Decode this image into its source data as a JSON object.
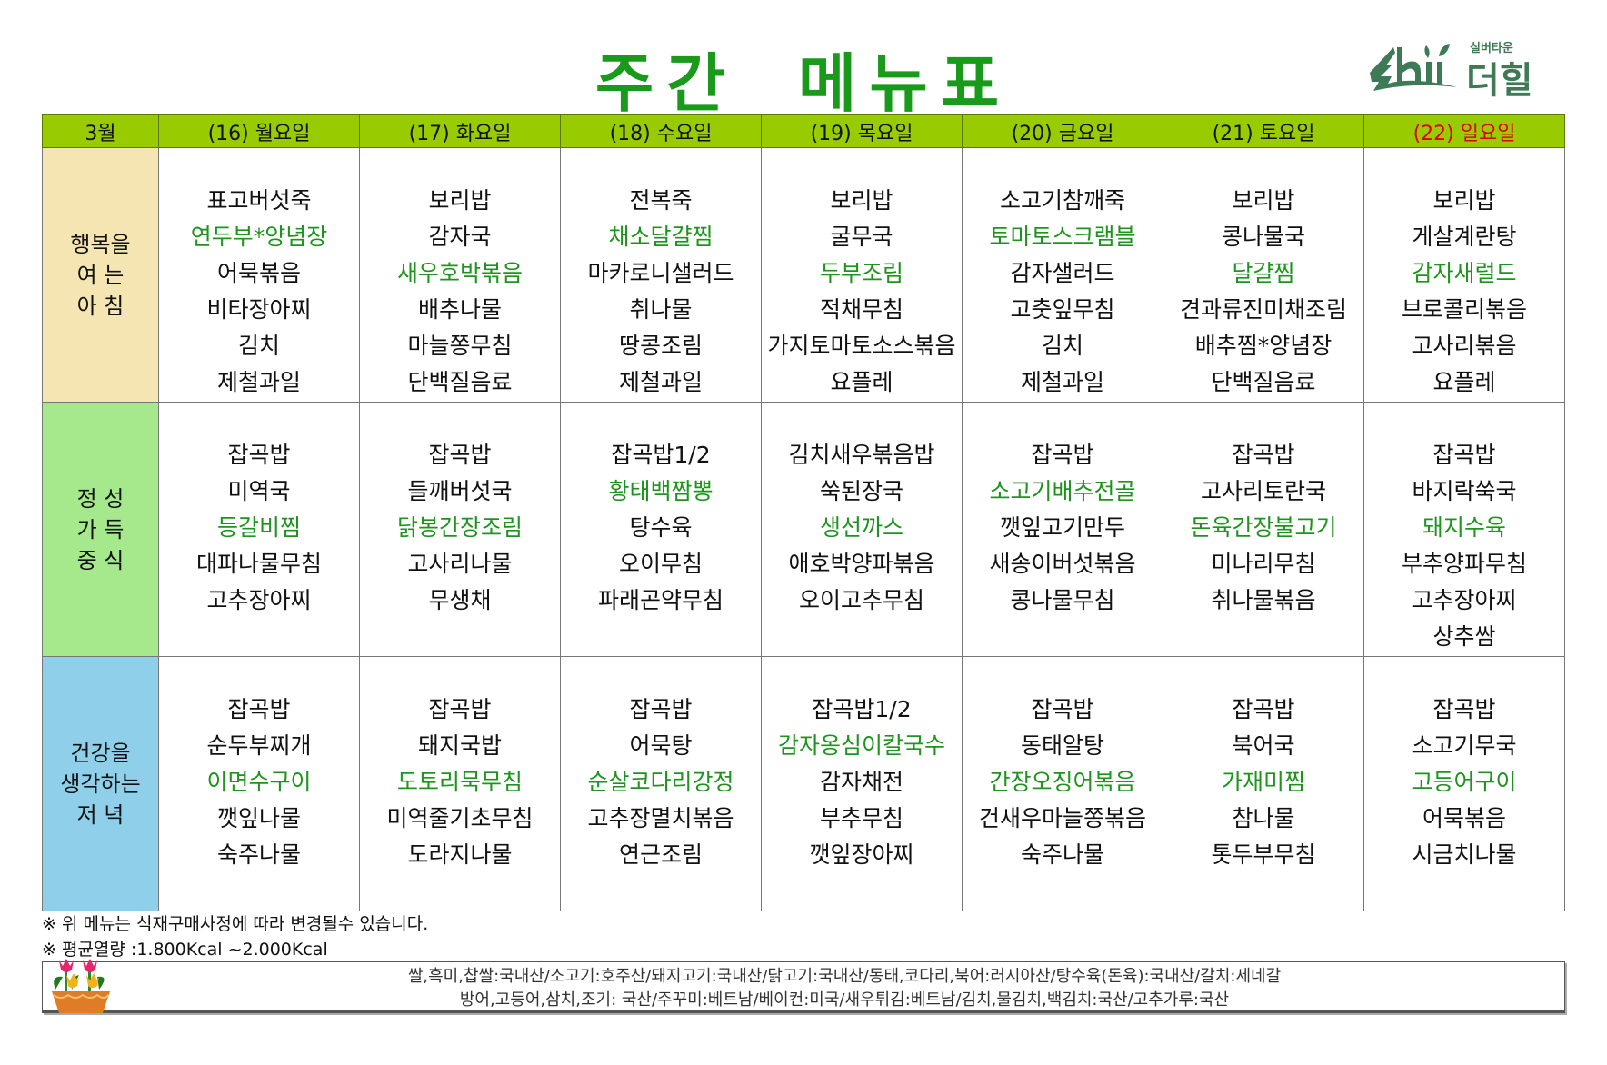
{
  "title": "주간 메뉴표",
  "logo": {
    "small_text": "실버타운",
    "name": "더힐",
    "color": "#3d7a55"
  },
  "colors": {
    "header_bg": "#99cc00",
    "highlight": "#1e941e",
    "sunday": "#e00000",
    "breakfast_bg": "#f4e5b2",
    "lunch_bg": "#a6e98c",
    "dinner_bg": "#8fcfea",
    "title": "#1a9a1a"
  },
  "table": {
    "month": "3월",
    "days": [
      "(16) 월요일",
      "(17) 화요일",
      "(18) 수요일",
      "(19) 목요일",
      "(20) 금요일",
      "(21) 토요일",
      "(22) 일요일"
    ],
    "meals": [
      {
        "label": [
          "행복을",
          "여 는",
          "아 침"
        ],
        "days": [
          [
            {
              "t": "표고버섯죽"
            },
            {
              "t": "연두부*양념장",
              "hl": true
            },
            {
              "t": "어묵볶음"
            },
            {
              "t": "비타장아찌"
            },
            {
              "t": "김치"
            },
            {
              "t": "제철과일"
            }
          ],
          [
            {
              "t": "보리밥"
            },
            {
              "t": "감자국"
            },
            {
              "t": "새우호박볶음",
              "hl": true
            },
            {
              "t": "배추나물"
            },
            {
              "t": "마늘쫑무침"
            },
            {
              "t": "단백질음료"
            }
          ],
          [
            {
              "t": "전복죽"
            },
            {
              "t": "채소달걀찜",
              "hl": true
            },
            {
              "t": "마카로니샐러드"
            },
            {
              "t": "취나물"
            },
            {
              "t": "땅콩조림"
            },
            {
              "t": "제철과일"
            }
          ],
          [
            {
              "t": "보리밥"
            },
            {
              "t": "굴무국"
            },
            {
              "t": "두부조림",
              "hl": true
            },
            {
              "t": "적채무침"
            },
            {
              "t": "가지토마토소스볶음"
            },
            {
              "t": "요플레"
            }
          ],
          [
            {
              "t": "소고기참깨죽"
            },
            {
              "t": "토마토스크램블",
              "hl": true
            },
            {
              "t": "감자샐러드"
            },
            {
              "t": "고춧잎무침"
            },
            {
              "t": "김치"
            },
            {
              "t": "제철과일"
            }
          ],
          [
            {
              "t": "보리밥"
            },
            {
              "t": "콩나물국"
            },
            {
              "t": "달걀찜",
              "hl": true
            },
            {
              "t": "견과류진미채조림"
            },
            {
              "t": "배추찜*양념장"
            },
            {
              "t": "단백질음료"
            }
          ],
          [
            {
              "t": "보리밥"
            },
            {
              "t": "게살계란탕"
            },
            {
              "t": "감자새럴드",
              "hl": true
            },
            {
              "t": "브로콜리볶음"
            },
            {
              "t": "고사리볶음"
            },
            {
              "t": "요플레"
            }
          ]
        ]
      },
      {
        "label": [
          "정 성",
          "가 득",
          "중 식"
        ],
        "days": [
          [
            {
              "t": "잡곡밥"
            },
            {
              "t": "미역국"
            },
            {
              "t": "등갈비찜",
              "hl": true
            },
            {
              "t": "대파나물무침"
            },
            {
              "t": "고추장아찌"
            }
          ],
          [
            {
              "t": "잡곡밥"
            },
            {
              "t": "들깨버섯국"
            },
            {
              "t": "닭봉간장조림",
              "hl": true
            },
            {
              "t": "고사리나물"
            },
            {
              "t": "무생채"
            }
          ],
          [
            {
              "t": "잡곡밥1/2"
            },
            {
              "t": "황태백짬뽕",
              "hl": true
            },
            {
              "t": "탕수육"
            },
            {
              "t": "오이무침"
            },
            {
              "t": "파래곤약무침"
            }
          ],
          [
            {
              "t": "김치새우볶음밥"
            },
            {
              "t": "쑥된장국"
            },
            {
              "t": "생선까스",
              "hl": true
            },
            {
              "t": "애호박양파볶음"
            },
            {
              "t": "오이고추무침"
            }
          ],
          [
            {
              "t": "잡곡밥"
            },
            {
              "t": "소고기배추전골",
              "hl": true
            },
            {
              "t": "깻잎고기만두"
            },
            {
              "t": "새송이버섯볶음"
            },
            {
              "t": "콩나물무침"
            }
          ],
          [
            {
              "t": "잡곡밥"
            },
            {
              "t": "고사리토란국"
            },
            {
              "t": "돈육간장불고기",
              "hl": true
            },
            {
              "t": "미나리무침"
            },
            {
              "t": "취나물볶음"
            }
          ],
          [
            {
              "t": "잡곡밥"
            },
            {
              "t": "바지락쑥국"
            },
            {
              "t": "돼지수육",
              "hl": true
            },
            {
              "t": "부추양파무침"
            },
            {
              "t": "고추장아찌"
            },
            {
              "t": "상추쌈"
            }
          ]
        ]
      },
      {
        "label": [
          "건강을",
          "생각하는",
          "저 녁"
        ],
        "days": [
          [
            {
              "t": "잡곡밥"
            },
            {
              "t": "순두부찌개"
            },
            {
              "t": "이면수구이",
              "hl": true
            },
            {
              "t": "깻잎나물"
            },
            {
              "t": "숙주나물"
            }
          ],
          [
            {
              "t": "잡곡밥"
            },
            {
              "t": "돼지국밥"
            },
            {
              "t": "도토리묵무침",
              "hl": true
            },
            {
              "t": "미역줄기초무침"
            },
            {
              "t": "도라지나물"
            }
          ],
          [
            {
              "t": "잡곡밥"
            },
            {
              "t": "어묵탕"
            },
            {
              "t": "순살코다리강정",
              "hl": true
            },
            {
              "t": "고추장멸치볶음"
            },
            {
              "t": "연근조림"
            }
          ],
          [
            {
              "t": "잡곡밥1/2"
            },
            {
              "t": "감자옹심이칼국수",
              "hl": true
            },
            {
              "t": "감자채전"
            },
            {
              "t": "부추무침"
            },
            {
              "t": "깻잎장아찌"
            }
          ],
          [
            {
              "t": "잡곡밥"
            },
            {
              "t": "동태알탕"
            },
            {
              "t": "간장오징어볶음",
              "hl": true
            },
            {
              "t": "건새우마늘쫑볶음"
            },
            {
              "t": "숙주나물"
            }
          ],
          [
            {
              "t": "잡곡밥"
            },
            {
              "t": "북어국"
            },
            {
              "t": "가재미찜",
              "hl": true
            },
            {
              "t": "참나물"
            },
            {
              "t": "톳두부무침"
            }
          ],
          [
            {
              "t": "잡곡밥"
            },
            {
              "t": "소고기무국"
            },
            {
              "t": "고등어구이",
              "hl": true
            },
            {
              "t": "어묵볶음"
            },
            {
              "t": "시금치나물"
            }
          ]
        ]
      }
    ]
  },
  "footer": {
    "note1": "※ 위 메뉴는 식재구매사정에 따라 변경될수 있습니다.",
    "note2": "※ 평균열량 :1.800Kcal ~2.000Kcal",
    "origin_line1": "쌀,흑미,찹쌀:국내산/소고기:호주산/돼지고기:국내산/닭고기:국내산/동태,코다리,북어:러시아산/탕수육(돈육):국내산/갈치:세네갈",
    "origin_line2": "방어,고등어,삼치,조기: 국산/주꾸미:베트남/베이컨:미국/새우튀김:베트남/김치,물김치,백김치:국산/고추가루:국산",
    "icon": "flower-pot-icon"
  }
}
